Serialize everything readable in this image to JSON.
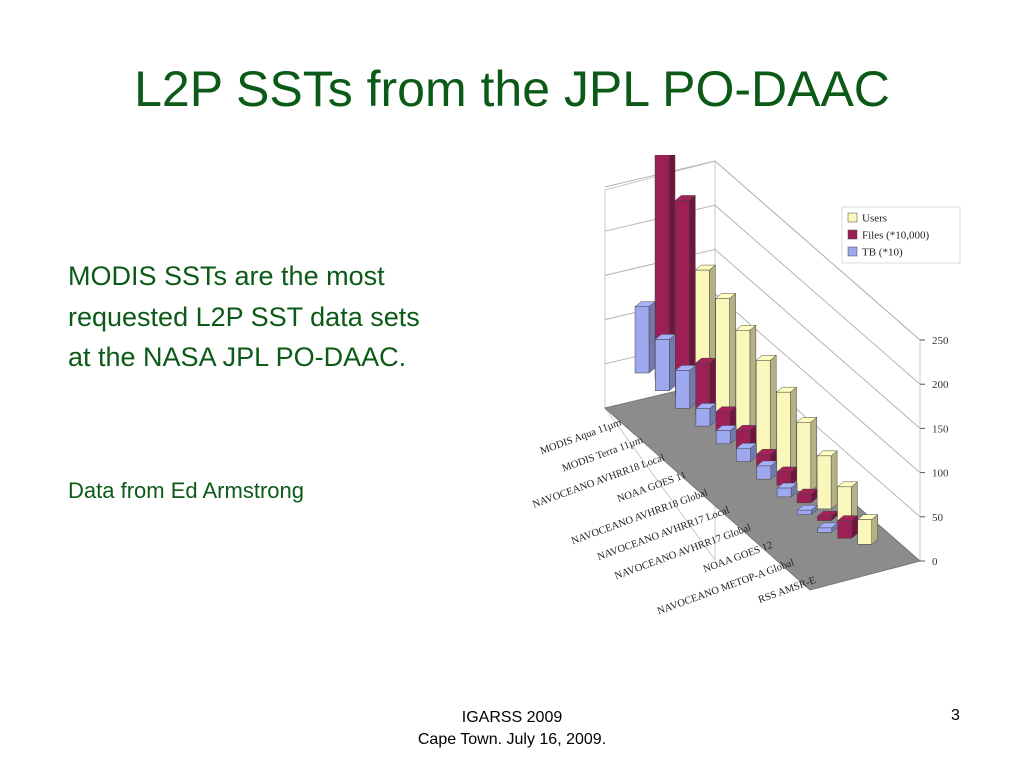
{
  "slide": {
    "title": "L2P SSTs from the JPL PO-DAAC",
    "body": "MODIS SSTs are the most requested L2P SST data sets at the NASA JPL PO-DAAC.",
    "credit": "Data from Ed Armstrong",
    "footer_line1": "IGARSS 2009",
    "footer_line2": "Cape Town. July 16, 2009.",
    "page_number": "3"
  },
  "colors": {
    "title": "#0b5a17",
    "users": "#fbf6b9",
    "files": "#9c1f55",
    "tb": "#9ea8ef"
  },
  "chart_data": {
    "type": "bar",
    "categories": [
      "MODIS Aqua 11µm",
      "MODIS Terra 11µm",
      "NAVOCEANO AVHRR18 Local",
      "NOAA GOES 11",
      "NAVOCEANO AVHRR18 Global",
      "NAVOCEANO AVHRR17 Local",
      "NAVOCEANO AVHRR17 Global",
      "NOAA GOES 12",
      "NAVOCEANO METOP-A Global",
      "RSS AMSR-E"
    ],
    "series": [
      {
        "name": "Users",
        "values": [
          200,
          150,
          138,
          122,
          108,
          92,
          78,
          60,
          45,
          28
        ]
      },
      {
        "name": "Files (*10,000)",
        "values": [
          265,
          222,
          58,
          23,
          22,
          15,
          15,
          10,
          5,
          20
        ]
      },
      {
        "name": "TB (*10)",
        "values": [
          75,
          58,
          43,
          20,
          15,
          15,
          15,
          10,
          5,
          5
        ]
      }
    ],
    "y_ticks": [
      "0",
      "50",
      "100",
      "150",
      "200",
      "250"
    ],
    "ylim": [
      0,
      250
    ],
    "legend_position": "top-right",
    "grid": true
  }
}
